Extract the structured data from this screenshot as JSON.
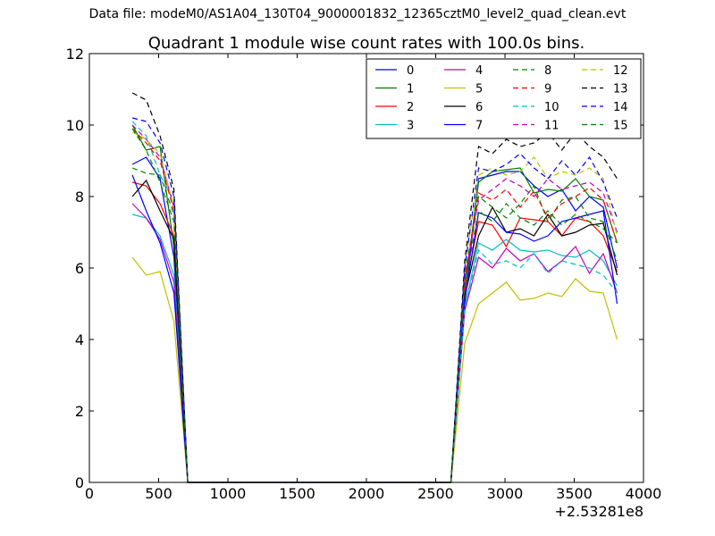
{
  "figure": {
    "suptitle": "Data file: modeM0/AS1A04_130T04_9000001832_12365cztM0_level2_quad_clean.evt"
  },
  "chart_data": {
    "type": "line",
    "title": "Quadrant 1 module wise count rates with 100.0s bins.",
    "xlabel": "",
    "ylabel": "",
    "x_offset_label": "+2.53281e8",
    "xlim": [
      0,
      4000
    ],
    "ylim": [
      0,
      12
    ],
    "xticks": [
      0,
      500,
      1000,
      1500,
      2000,
      2500,
      3000,
      3500,
      4000
    ],
    "yticks": [
      0,
      2,
      4,
      6,
      8,
      10,
      12
    ],
    "grid": false,
    "legend": {
      "position": "top-right",
      "columns": 4
    },
    "x": [
      310,
      410,
      510,
      610,
      710,
      810,
      910,
      1010,
      1110,
      1210,
      1310,
      1410,
      1510,
      1610,
      1710,
      1810,
      1910,
      2010,
      2110,
      2210,
      2310,
      2410,
      2510,
      2610,
      2710,
      2810,
      2910,
      3010,
      3110,
      3210,
      3310,
      3410,
      3510,
      3610,
      3710,
      3810
    ],
    "series": [
      {
        "name": "0",
        "color": "#0000ff",
        "dash": "solid",
        "values": [
          8.9,
          9.1,
          8.5,
          6.3,
          0,
          0,
          0,
          0,
          0,
          0,
          0,
          0,
          0,
          0,
          0,
          0,
          0,
          0,
          0,
          0,
          0,
          0,
          0,
          0,
          5.0,
          8.5,
          8.6,
          8.7,
          8.7,
          8.3,
          8.0,
          8.2,
          7.6,
          8.0,
          7.7,
          6.0
        ]
      },
      {
        "name": "1",
        "color": "#008000",
        "dash": "solid",
        "values": [
          10.0,
          9.3,
          9.4,
          6.6,
          0,
          0,
          0,
          0,
          0,
          0,
          0,
          0,
          0,
          0,
          0,
          0,
          0,
          0,
          0,
          0,
          0,
          0,
          0,
          0,
          5.4,
          8.4,
          8.7,
          8.75,
          8.8,
          8.1,
          8.2,
          8.15,
          8.5,
          8.0,
          7.9,
          6.7
        ]
      },
      {
        "name": "2",
        "color": "#ff0000",
        "dash": "solid",
        "values": [
          8.4,
          8.3,
          7.8,
          6.9,
          0,
          0,
          0,
          0,
          0,
          0,
          0,
          0,
          0,
          0,
          0,
          0,
          0,
          0,
          0,
          0,
          0,
          0,
          0,
          0,
          5.3,
          7.3,
          7.2,
          6.6,
          7.4,
          7.35,
          7.3,
          6.9,
          7.4,
          7.3,
          6.9,
          5.9
        ]
      },
      {
        "name": "3",
        "color": "#00bfbf",
        "dash": "solid",
        "values": [
          7.5,
          7.4,
          6.9,
          5.8,
          0,
          0,
          0,
          0,
          0,
          0,
          0,
          0,
          0,
          0,
          0,
          0,
          0,
          0,
          0,
          0,
          0,
          0,
          0,
          0,
          4.9,
          6.7,
          6.5,
          6.8,
          6.5,
          6.45,
          6.5,
          6.35,
          6.3,
          6.5,
          6.2,
          5.5
        ]
      },
      {
        "name": "4",
        "color": "#bf00bf",
        "dash": "solid",
        "values": [
          7.8,
          7.4,
          6.8,
          5.6,
          0,
          0,
          0,
          0,
          0,
          0,
          0,
          0,
          0,
          0,
          0,
          0,
          0,
          0,
          0,
          0,
          0,
          0,
          0,
          0,
          4.8,
          6.3,
          6.0,
          6.55,
          6.2,
          6.4,
          5.9,
          6.2,
          6.6,
          5.85,
          6.4,
          5.3
        ]
      },
      {
        "name": "5",
        "color": "#bfbf00",
        "dash": "solid",
        "values": [
          6.3,
          5.8,
          5.9,
          4.5,
          0,
          0,
          0,
          0,
          0,
          0,
          0,
          0,
          0,
          0,
          0,
          0,
          0,
          0,
          0,
          0,
          0,
          0,
          0,
          0,
          3.9,
          5.0,
          5.3,
          5.6,
          5.1,
          5.15,
          5.3,
          5.2,
          5.7,
          5.35,
          5.3,
          4.0
        ]
      },
      {
        "name": "6",
        "color": "#000000",
        "dash": "solid",
        "values": [
          8.0,
          8.45,
          7.6,
          6.8,
          0,
          0,
          0,
          0,
          0,
          0,
          0,
          0,
          0,
          0,
          0,
          0,
          0,
          0,
          0,
          0,
          0,
          0,
          0,
          0,
          5.2,
          6.9,
          7.7,
          7.0,
          7.1,
          6.9,
          7.5,
          6.9,
          7.0,
          7.2,
          7.25,
          5.8
        ]
      },
      {
        "name": "7",
        "color": "#0000ff",
        "dash": "solid",
        "values": [
          8.6,
          7.6,
          6.7,
          5.3,
          0,
          0,
          0,
          0,
          0,
          0,
          0,
          0,
          0,
          0,
          0,
          0,
          0,
          0,
          0,
          0,
          0,
          0,
          0,
          0,
          5.1,
          7.55,
          7.4,
          7.0,
          6.95,
          6.75,
          6.9,
          7.3,
          7.4,
          7.5,
          7.6,
          5.0
        ]
      },
      {
        "name": "8",
        "color": "#008000",
        "dash": "dashed",
        "values": [
          8.8,
          8.65,
          8.6,
          7.5,
          0,
          0,
          0,
          0,
          0,
          0,
          0,
          0,
          0,
          0,
          0,
          0,
          0,
          0,
          0,
          0,
          0,
          0,
          0,
          0,
          5.8,
          8.0,
          7.7,
          7.4,
          7.8,
          8.3,
          7.3,
          7.9,
          8.0,
          7.4,
          7.3,
          6.2
        ]
      },
      {
        "name": "9",
        "color": "#ff0000",
        "dash": "dashed",
        "values": [
          9.9,
          9.5,
          9.0,
          7.6,
          0,
          0,
          0,
          0,
          0,
          0,
          0,
          0,
          0,
          0,
          0,
          0,
          0,
          0,
          0,
          0,
          0,
          0,
          0,
          0,
          5.6,
          8.1,
          7.9,
          8.2,
          7.7,
          8.15,
          7.4,
          7.8,
          8.0,
          8.25,
          7.9,
          6.7
        ]
      },
      {
        "name": "10",
        "color": "#00bfbf",
        "dash": "dashed",
        "values": [
          10.1,
          9.7,
          8.6,
          7.9,
          0,
          0,
          0,
          0,
          0,
          0,
          0,
          0,
          0,
          0,
          0,
          0,
          0,
          0,
          0,
          0,
          0,
          0,
          0,
          0,
          4.9,
          6.5,
          6.1,
          6.2,
          6.0,
          6.4,
          5.85,
          6.2,
          6.1,
          6.0,
          5.8,
          5.3
        ]
      },
      {
        "name": "11",
        "color": "#bf00bf",
        "dash": "dashed",
        "values": [
          10.0,
          9.6,
          9.1,
          7.7,
          0,
          0,
          0,
          0,
          0,
          0,
          0,
          0,
          0,
          0,
          0,
          0,
          0,
          0,
          0,
          0,
          0,
          0,
          0,
          0,
          5.7,
          7.9,
          8.2,
          8.5,
          8.3,
          8.0,
          8.5,
          8.2,
          8.3,
          8.4,
          8.1,
          7.0
        ]
      },
      {
        "name": "12",
        "color": "#bfbf00",
        "dash": "dashed",
        "values": [
          9.8,
          9.6,
          9.2,
          7.7,
          0,
          0,
          0,
          0,
          0,
          0,
          0,
          0,
          0,
          0,
          0,
          0,
          0,
          0,
          0,
          0,
          0,
          0,
          0,
          0,
          6.0,
          8.6,
          8.8,
          8.6,
          8.7,
          9.1,
          8.5,
          8.7,
          8.6,
          8.8,
          8.5,
          6.9
        ]
      },
      {
        "name": "13",
        "color": "#000000",
        "dash": "dashed",
        "values": [
          10.9,
          10.7,
          9.7,
          8.2,
          0,
          0,
          0,
          0,
          0,
          0,
          0,
          0,
          0,
          0,
          0,
          0,
          0,
          0,
          0,
          0,
          0,
          0,
          0,
          0,
          6.2,
          9.4,
          9.2,
          9.6,
          9.4,
          9.5,
          9.8,
          9.3,
          9.8,
          9.4,
          9.1,
          8.5
        ]
      },
      {
        "name": "14",
        "color": "#0000ff",
        "dash": "dashed",
        "values": [
          10.2,
          10.1,
          9.5,
          8.0,
          0,
          0,
          0,
          0,
          0,
          0,
          0,
          0,
          0,
          0,
          0,
          0,
          0,
          0,
          0,
          0,
          0,
          0,
          0,
          0,
          6.0,
          8.8,
          8.7,
          8.9,
          9.2,
          8.8,
          8.5,
          9.0,
          8.6,
          9.1,
          8.4,
          7.4
        ]
      },
      {
        "name": "15",
        "color": "#008000",
        "dash": "dashed",
        "values": [
          9.9,
          9.3,
          8.4,
          7.3,
          0,
          0,
          0,
          0,
          0,
          0,
          0,
          0,
          0,
          0,
          0,
          0,
          0,
          0,
          0,
          0,
          0,
          0,
          0,
          0,
          5.5,
          7.6,
          7.3,
          7.8,
          7.4,
          7.2,
          7.6,
          7.2,
          7.5,
          7.3,
          7.1,
          6.7
        ]
      }
    ]
  }
}
